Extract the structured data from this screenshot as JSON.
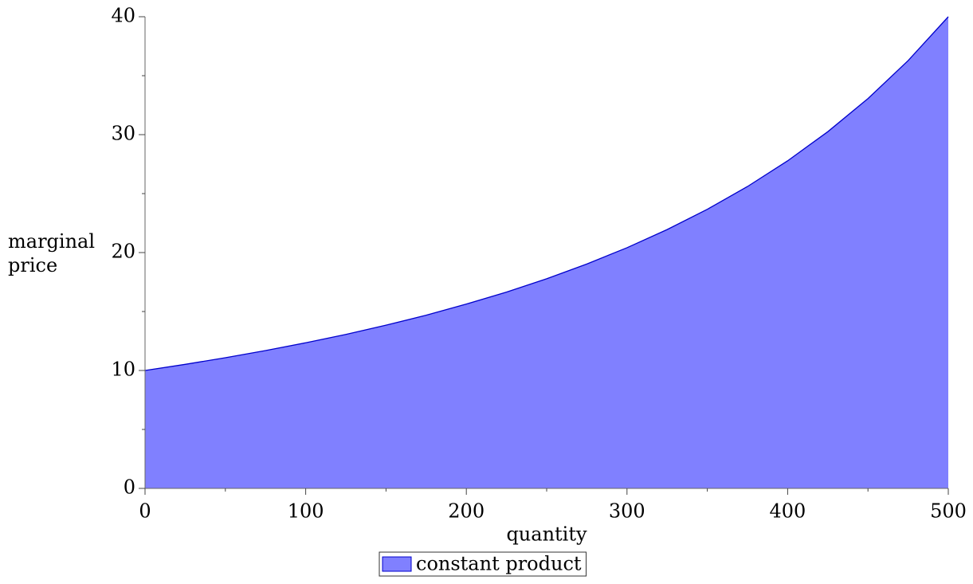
{
  "chart_data": {
    "type": "area",
    "xlabel": "quantity",
    "ylabel": "marginal price",
    "x": [
      0,
      25,
      50,
      75,
      100,
      125,
      150,
      175,
      200,
      225,
      250,
      275,
      300,
      325,
      350,
      375,
      400,
      425,
      450,
      475,
      500
    ],
    "series": [
      {
        "name": "constant product",
        "color": "#8080ff",
        "line_color": "#0000cc",
        "values": [
          10,
          10.52,
          11.08,
          11.69,
          12.35,
          13.06,
          13.84,
          14.69,
          15.63,
          16.65,
          17.78,
          19.03,
          20.41,
          21.95,
          23.67,
          25.6,
          27.78,
          30.25,
          33.06,
          36.28,
          40
        ]
      }
    ],
    "xlim": [
      0,
      500
    ],
    "xticks": [
      0,
      100,
      200,
      300,
      400,
      500
    ],
    "ylim": [
      0,
      40
    ],
    "yticks": [
      0,
      10,
      20,
      30,
      40
    ],
    "grid": false,
    "legend": "bottom"
  }
}
